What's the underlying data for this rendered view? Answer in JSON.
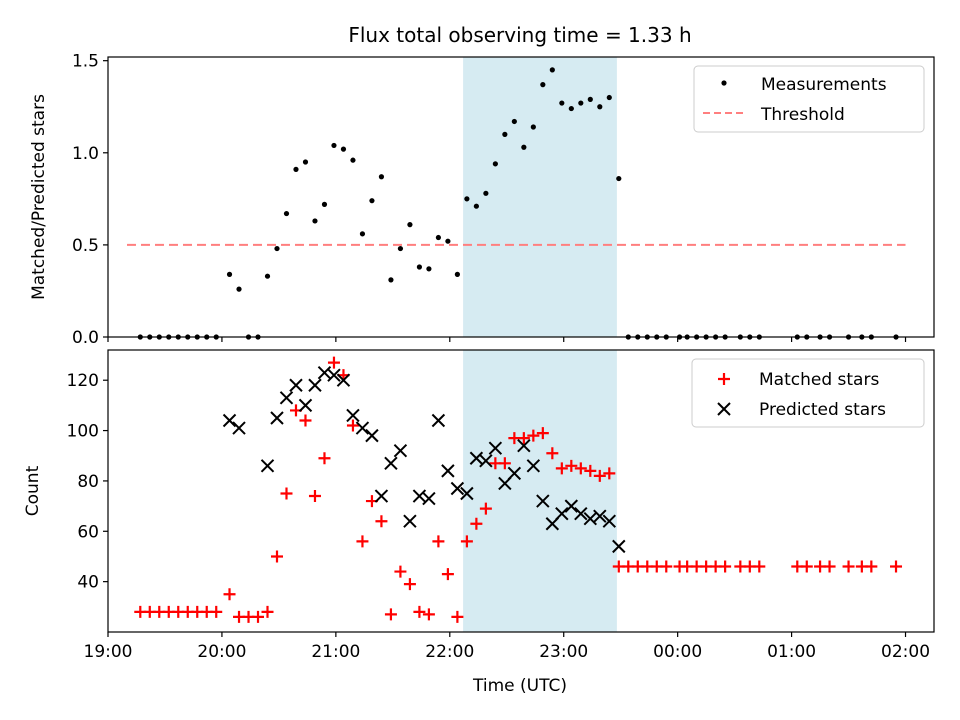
{
  "title": "Flux total observing time = 1.33 h",
  "colors": {
    "measurement": "#000000",
    "threshold": "#ff7f7f",
    "matched": "#ff0000",
    "predicted": "#000000",
    "highlight": "#add8e6"
  },
  "chart_data": [
    {
      "type": "scatter",
      "ylabel": "Matched/Predicted stars",
      "xlabel": "",
      "x_unit": "hours after 19:00 UTC",
      "xlim": [
        "19:00",
        "02:15"
      ],
      "ylim": [
        0,
        1.52
      ],
      "yticks": [
        "0.0",
        "0.5",
        "1.0",
        "1.5"
      ],
      "highlight_span": [
        "22:07",
        "23:28"
      ],
      "legend": {
        "placement": "top-right",
        "entries": [
          "Measurements",
          "Threshold"
        ]
      },
      "threshold": {
        "name": "Threshold",
        "y": 0.5,
        "x_range": [
          "19:10",
          "02:00"
        ]
      },
      "series": [
        {
          "name": "Measurements",
          "points": [
            [
              "19:17",
              0
            ],
            [
              "19:22",
              0
            ],
            [
              "19:27",
              0
            ],
            [
              "19:32",
              0
            ],
            [
              "19:37",
              0
            ],
            [
              "19:42",
              0
            ],
            [
              "19:47",
              0
            ],
            [
              "19:52",
              0
            ],
            [
              "19:57",
              0
            ],
            [
              "20:04",
              0.34
            ],
            [
              "20:09",
              0.26
            ],
            [
              "20:14",
              0
            ],
            [
              "20:19",
              0
            ],
            [
              "20:24",
              0.33
            ],
            [
              "20:29",
              0.48
            ],
            [
              "20:34",
              0.67
            ],
            [
              "20:39",
              0.91
            ],
            [
              "20:44",
              0.95
            ],
            [
              "20:49",
              0.63
            ],
            [
              "20:54",
              0.72
            ],
            [
              "20:59",
              1.04
            ],
            [
              "21:04",
              1.02
            ],
            [
              "21:09",
              0.96
            ],
            [
              "21:14",
              0.56
            ],
            [
              "21:19",
              0.74
            ],
            [
              "21:24",
              0.87
            ],
            [
              "21:29",
              0.31
            ],
            [
              "21:34",
              0.48
            ],
            [
              "21:39",
              0.61
            ],
            [
              "21:44",
              0.38
            ],
            [
              "21:49",
              0.37
            ],
            [
              "21:54",
              0.54
            ],
            [
              "21:59",
              0.52
            ],
            [
              "22:04",
              0.34
            ],
            [
              "22:09",
              0.75
            ],
            [
              "22:14",
              0.71
            ],
            [
              "22:19",
              0.78
            ],
            [
              "22:24",
              0.94
            ],
            [
              "22:29",
              1.1
            ],
            [
              "22:34",
              1.17
            ],
            [
              "22:39",
              1.03
            ],
            [
              "22:44",
              1.14
            ],
            [
              "22:49",
              1.37
            ],
            [
              "22:54",
              1.45
            ],
            [
              "22:59",
              1.27
            ],
            [
              "23:04",
              1.24
            ],
            [
              "23:09",
              1.27
            ],
            [
              "23:14",
              1.29
            ],
            [
              "23:19",
              1.25
            ],
            [
              "23:24",
              1.3
            ],
            [
              "23:29",
              0.86
            ],
            [
              "23:34",
              0
            ],
            [
              "23:39",
              0
            ],
            [
              "23:44",
              0
            ],
            [
              "23:49",
              0
            ],
            [
              "23:54",
              0
            ],
            [
              "00:01",
              0
            ],
            [
              "00:05",
              0
            ],
            [
              "00:10",
              0
            ],
            [
              "00:15",
              0
            ],
            [
              "00:20",
              0
            ],
            [
              "00:25",
              0
            ],
            [
              "00:33",
              0
            ],
            [
              "00:38",
              0
            ],
            [
              "00:43",
              0
            ],
            [
              "01:03",
              0
            ],
            [
              "01:08",
              0
            ],
            [
              "01:15",
              0
            ],
            [
              "01:20",
              0
            ],
            [
              "01:30",
              0
            ],
            [
              "01:37",
              0
            ],
            [
              "01:42",
              0
            ],
            [
              "01:55",
              0
            ]
          ]
        }
      ]
    },
    {
      "type": "scatter",
      "ylabel": "Count",
      "xlabel": "Time (UTC)",
      "xlim": [
        "19:00",
        "02:15"
      ],
      "ylim": [
        20,
        132
      ],
      "yticks": [
        "40",
        "60",
        "80",
        "100",
        "120"
      ],
      "xticks": [
        "19:00",
        "20:00",
        "21:00",
        "22:00",
        "23:00",
        "00:00",
        "01:00",
        "02:00"
      ],
      "highlight_span": [
        "22:07",
        "23:28"
      ],
      "legend": {
        "placement": "top-right",
        "entries": [
          "Matched stars",
          "Predicted stars"
        ]
      },
      "series": [
        {
          "name": "Matched stars",
          "points": [
            [
              "19:17",
              28
            ],
            [
              "19:22",
              28
            ],
            [
              "19:27",
              28
            ],
            [
              "19:32",
              28
            ],
            [
              "19:37",
              28
            ],
            [
              "19:42",
              28
            ],
            [
              "19:47",
              28
            ],
            [
              "19:52",
              28
            ],
            [
              "19:57",
              28
            ],
            [
              "20:04",
              35
            ],
            [
              "20:09",
              26
            ],
            [
              "20:14",
              26
            ],
            [
              "20:19",
              26
            ],
            [
              "20:24",
              28
            ],
            [
              "20:29",
              50
            ],
            [
              "20:34",
              75
            ],
            [
              "20:39",
              108
            ],
            [
              "20:44",
              104
            ],
            [
              "20:49",
              74
            ],
            [
              "20:54",
              89
            ],
            [
              "20:59",
              127
            ],
            [
              "21:04",
              122
            ],
            [
              "21:09",
              102
            ],
            [
              "21:14",
              56
            ],
            [
              "21:19",
              72
            ],
            [
              "21:24",
              64
            ],
            [
              "21:29",
              27
            ],
            [
              "21:34",
              44
            ],
            [
              "21:39",
              39
            ],
            [
              "21:44",
              28
            ],
            [
              "21:49",
              27
            ],
            [
              "21:54",
              56
            ],
            [
              "21:59",
              43
            ],
            [
              "22:04",
              26
            ],
            [
              "22:09",
              56
            ],
            [
              "22:14",
              63
            ],
            [
              "22:19",
              69
            ],
            [
              "22:24",
              87
            ],
            [
              "22:29",
              87
            ],
            [
              "22:34",
              97
            ],
            [
              "22:39",
              97
            ],
            [
              "22:44",
              98
            ],
            [
              "22:49",
              99
            ],
            [
              "22:54",
              91
            ],
            [
              "22:59",
              85
            ],
            [
              "23:04",
              86
            ],
            [
              "23:09",
              85
            ],
            [
              "23:14",
              84
            ],
            [
              "23:19",
              82
            ],
            [
              "23:24",
              83
            ],
            [
              "23:29",
              46
            ],
            [
              "23:34",
              46
            ],
            [
              "23:39",
              46
            ],
            [
              "23:44",
              46
            ],
            [
              "23:49",
              46
            ],
            [
              "23:54",
              46
            ],
            [
              "00:01",
              46
            ],
            [
              "00:05",
              46
            ],
            [
              "00:10",
              46
            ],
            [
              "00:15",
              46
            ],
            [
              "00:20",
              46
            ],
            [
              "00:25",
              46
            ],
            [
              "00:33",
              46
            ],
            [
              "00:38",
              46
            ],
            [
              "00:43",
              46
            ],
            [
              "01:03",
              46
            ],
            [
              "01:08",
              46
            ],
            [
              "01:15",
              46
            ],
            [
              "01:20",
              46
            ],
            [
              "01:30",
              46
            ],
            [
              "01:37",
              46
            ],
            [
              "01:42",
              46
            ],
            [
              "01:55",
              46
            ]
          ]
        },
        {
          "name": "Predicted stars",
          "points": [
            [
              "20:04",
              104
            ],
            [
              "20:09",
              101
            ],
            [
              "20:24",
              86
            ],
            [
              "20:29",
              105
            ],
            [
              "20:34",
              113
            ],
            [
              "20:39",
              118
            ],
            [
              "20:44",
              110
            ],
            [
              "20:49",
              118
            ],
            [
              "20:54",
              123
            ],
            [
              "20:59",
              122
            ],
            [
              "21:04",
              120
            ],
            [
              "21:09",
              106
            ],
            [
              "21:14",
              101
            ],
            [
              "21:19",
              98
            ],
            [
              "21:24",
              74
            ],
            [
              "21:29",
              87
            ],
            [
              "21:34",
              92
            ],
            [
              "21:39",
              64
            ],
            [
              "21:44",
              74
            ],
            [
              "21:49",
              73
            ],
            [
              "21:54",
              104
            ],
            [
              "21:59",
              84
            ],
            [
              "22:04",
              77
            ],
            [
              "22:09",
              75
            ],
            [
              "22:14",
              89
            ],
            [
              "22:19",
              88
            ],
            [
              "22:24",
              93
            ],
            [
              "22:29",
              79
            ],
            [
              "22:34",
              83
            ],
            [
              "22:39",
              94
            ],
            [
              "22:44",
              86
            ],
            [
              "22:49",
              72
            ],
            [
              "22:54",
              63
            ],
            [
              "22:59",
              67
            ],
            [
              "23:04",
              70
            ],
            [
              "23:09",
              67
            ],
            [
              "23:14",
              65
            ],
            [
              "23:19",
              66
            ],
            [
              "23:24",
              64
            ],
            [
              "23:29",
              54
            ]
          ]
        }
      ]
    }
  ]
}
